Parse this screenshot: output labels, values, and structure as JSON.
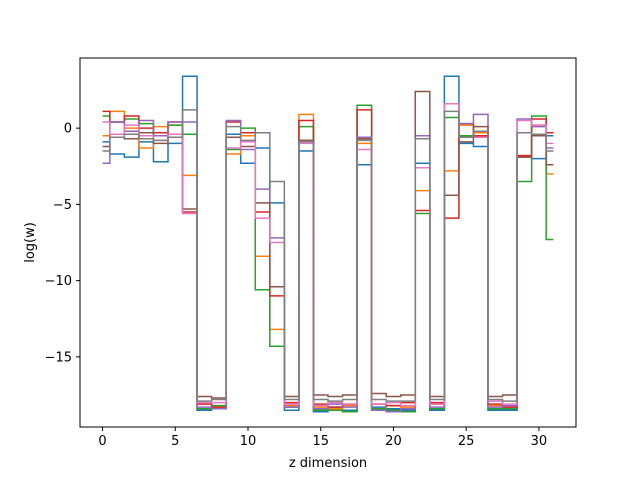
{
  "chart_data": {
    "type": "line",
    "step": "mid",
    "xlabel": "z dimension",
    "ylabel": "log(w)",
    "xlim": [
      -1.55,
      32.55
    ],
    "ylim": [
      -19.6,
      4.6
    ],
    "xticks": [
      0,
      5,
      10,
      15,
      20,
      25,
      30
    ],
    "yticks": [
      0,
      -5,
      -10,
      -15
    ],
    "grid": false,
    "x": [
      0,
      1,
      2,
      3,
      4,
      5,
      6,
      7,
      8,
      9,
      10,
      11,
      12,
      13,
      14,
      15,
      16,
      17,
      18,
      19,
      20,
      21,
      22,
      23,
      24,
      25,
      26,
      27,
      28,
      29,
      30,
      31
    ],
    "series": [
      {
        "color": "#1f77b4",
        "values": [
          -0.9,
          -1.7,
          -1.9,
          -0.9,
          -2.2,
          -1.0,
          3.4,
          -18.5,
          -18.4,
          -0.4,
          -2.3,
          -1.3,
          -4.9,
          -18.5,
          -1.5,
          -18.6,
          -18.3,
          -18.5,
          -2.4,
          -18.3,
          -18.4,
          -18.5,
          -2.3,
          -18.5,
          3.4,
          -1.0,
          -1.2,
          -18.5,
          -18.5,
          -1.9,
          -2.0,
          -0.5
        ]
      },
      {
        "color": "#ff7f0e",
        "values": [
          -0.5,
          1.1,
          0.0,
          -1.3,
          0.1,
          0.2,
          -3.1,
          -18.4,
          -18.3,
          -1.7,
          -0.5,
          -8.4,
          -13.2,
          -18.2,
          0.9,
          -18.3,
          -18.4,
          -18.2,
          -1.0,
          -18.4,
          -18.2,
          -18.3,
          -4.1,
          -18.1,
          -2.8,
          0.2,
          -0.3,
          -18.2,
          -18.3,
          -1.8,
          0.2,
          -3.0
        ]
      },
      {
        "color": "#2ca02c",
        "values": [
          0.8,
          0.4,
          0.6,
          0.3,
          -0.5,
          0.2,
          -0.4,
          -18.4,
          -18.2,
          -1.4,
          0.0,
          -10.6,
          -14.3,
          -18.3,
          0.1,
          -18.5,
          -18.5,
          -18.6,
          1.5,
          -18.4,
          -18.5,
          -18.6,
          -5.6,
          -18.4,
          0.7,
          -0.5,
          -0.2,
          -18.4,
          -18.4,
          -3.5,
          0.8,
          -7.3
        ]
      },
      {
        "color": "#d62728",
        "values": [
          1.1,
          0.4,
          0.8,
          0.0,
          -0.3,
          0.4,
          -5.5,
          -18.1,
          -18.3,
          0.4,
          -0.3,
          -5.5,
          -11.0,
          -18.0,
          0.5,
          -18.1,
          -18.3,
          -18.1,
          1.2,
          -18.1,
          -18.2,
          -18.0,
          -5.4,
          -18.0,
          -5.9,
          0.3,
          -0.5,
          -18.1,
          -18.3,
          -1.8,
          0.6,
          -0.3
        ]
      },
      {
        "color": "#9467bd",
        "values": [
          -2.3,
          0.4,
          -0.2,
          0.5,
          -0.5,
          0.4,
          0.4,
          -18.3,
          -18.4,
          0.5,
          -1.4,
          -4.0,
          -7.2,
          -18.3,
          -0.8,
          -18.4,
          -18.1,
          -18.3,
          -0.6,
          -18.5,
          -18.6,
          -18.4,
          -0.5,
          -18.3,
          1.6,
          0.3,
          0.9,
          -18.3,
          -18.2,
          0.6,
          0.1,
          -1.3
        ]
      },
      {
        "color": "#8c564b",
        "values": [
          -1.2,
          -0.6,
          -0.7,
          -0.3,
          -1.0,
          -0.4,
          -5.3,
          -17.6,
          -17.7,
          -0.6,
          -1.2,
          -4.9,
          -10.4,
          -17.6,
          -0.8,
          -17.5,
          -17.6,
          -17.5,
          -0.7,
          -17.4,
          -17.6,
          -17.5,
          2.4,
          -17.6,
          -4.4,
          -0.9,
          0.1,
          -17.6,
          -17.5,
          -1.9,
          -0.5,
          -2.4
        ]
      },
      {
        "color": "#e377c2",
        "values": [
          0.4,
          -0.4,
          0.2,
          -0.5,
          -0.8,
          -0.4,
          -5.6,
          -18.0,
          -18.0,
          -1.3,
          -0.9,
          -5.9,
          -7.5,
          -18.1,
          -1.0,
          -18.2,
          -18.0,
          -18.1,
          -1.4,
          -18.1,
          -18.0,
          -18.2,
          -2.6,
          -18.1,
          1.6,
          -0.6,
          -0.6,
          -17.9,
          -18.1,
          0.5,
          0.2,
          -1.0
        ]
      },
      {
        "color": "#7f7f7f",
        "values": [
          -1.5,
          -0.6,
          -0.4,
          -0.7,
          -0.8,
          -0.6,
          1.2,
          -17.9,
          -17.8,
          0.1,
          -0.8,
          -0.3,
          -3.5,
          -17.8,
          -0.9,
          -17.8,
          -17.9,
          -17.8,
          -0.8,
          -17.8,
          -17.9,
          -17.9,
          -0.7,
          -17.8,
          1.1,
          -0.6,
          -0.2,
          -17.8,
          -17.9,
          -0.3,
          -0.4,
          -1.5
        ]
      }
    ]
  }
}
